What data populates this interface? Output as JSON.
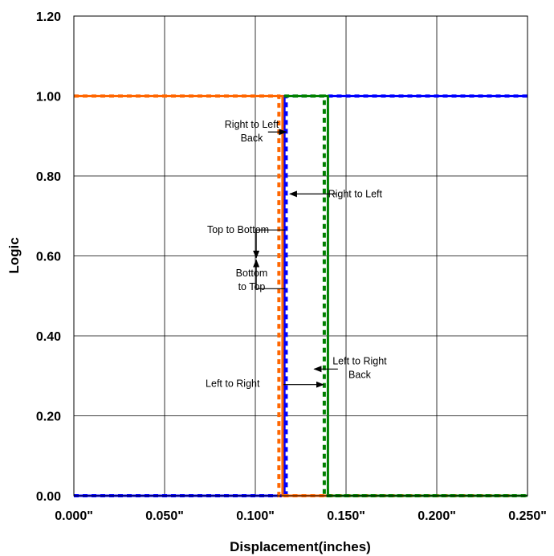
{
  "chart_data": {
    "type": "line",
    "title": "",
    "xlabel": "Displacement(inches)",
    "ylabel": "Logic",
    "xlim": [
      0.0,
      0.25
    ],
    "ylim": [
      0.0,
      1.2
    ],
    "grid": true,
    "legend": "none",
    "x_ticks": [
      "0.000\"",
      "0.050\"",
      "0.100\"",
      "0.150\"",
      "0.200\"",
      "0.250\""
    ],
    "y_ticks": [
      "0.00",
      "0.20",
      "0.40",
      "0.60",
      "0.80",
      "1.00",
      "1.20"
    ],
    "series": [
      {
        "color": "#0000ff",
        "dash": "solid",
        "x": [
          0.0,
          0.116,
          0.116,
          0.25
        ],
        "y": [
          0,
          0,
          1,
          1
        ]
      },
      {
        "color": "#0000ff",
        "dash": "dotted",
        "x": [
          0.0,
          0.117,
          0.117,
          0.25
        ],
        "y": [
          0,
          0,
          1,
          1
        ]
      },
      {
        "color": "#ff6600",
        "dash": "solid",
        "x": [
          0.0,
          0.115,
          0.115,
          0.24
        ],
        "y": [
          1,
          1,
          0,
          0
        ]
      },
      {
        "color": "#ff6600",
        "dash": "dotted",
        "x": [
          0.0,
          0.113,
          0.113,
          0.24
        ],
        "y": [
          1,
          1,
          0,
          0
        ]
      },
      {
        "color": "#008000",
        "dash": "solid",
        "x": [
          0.116,
          0.14,
          0.14,
          0.25
        ],
        "y": [
          1,
          1,
          0,
          0
        ]
      },
      {
        "color": "#008000",
        "dash": "dotted",
        "x": [
          0.116,
          0.138,
          0.138,
          0.25
        ],
        "y": [
          1,
          1,
          0,
          0
        ]
      }
    ],
    "annotations": [
      {
        "text": [
          "Right to Left",
          "Back"
        ],
        "text_x": 0.098,
        "text_y": 0.912,
        "anchor": "middle",
        "arrow_from": [
          0.107,
          0.91
        ],
        "arrow_to": [
          0.117,
          0.91
        ]
      },
      {
        "text": [
          "Right to Left"
        ],
        "text_x": 0.155,
        "text_y": 0.755,
        "anchor": "middle",
        "arrow_from": [
          0.1445,
          0.755
        ],
        "arrow_to": [
          0.119,
          0.755
        ]
      },
      {
        "text": [
          "Top to Bottom"
        ],
        "text_x": 0.0905,
        "text_y": 0.665,
        "anchor": "middle",
        "arrow_from": [
          0.1165,
          0.665
        ],
        "arrow_to": [
          0.1005,
          0.665
        ],
        "arrow_to2": [
          0.1005,
          0.595
        ]
      },
      {
        "text": [
          "Bottom",
          "to Top"
        ],
        "text_x": 0.098,
        "text_y": 0.54,
        "anchor": "middle",
        "arrow_from": [
          0.1165,
          0.518
        ],
        "arrow_to": [
          0.1005,
          0.518
        ],
        "arrow_to2": [
          0.1005,
          0.59
        ]
      },
      {
        "text": [
          "Left to Right"
        ],
        "text_x": 0.0875,
        "text_y": 0.28,
        "anchor": "middle",
        "arrow_from": [
          0.1155,
          0.278
        ],
        "arrow_to": [
          0.1375,
          0.278
        ]
      },
      {
        "text": [
          "Left to Right",
          "Back"
        ],
        "text_x": 0.1575,
        "text_y": 0.32,
        "anchor": "middle",
        "arrow_from": [
          0.1455,
          0.317
        ],
        "arrow_to": [
          0.1325,
          0.317
        ]
      }
    ]
  }
}
